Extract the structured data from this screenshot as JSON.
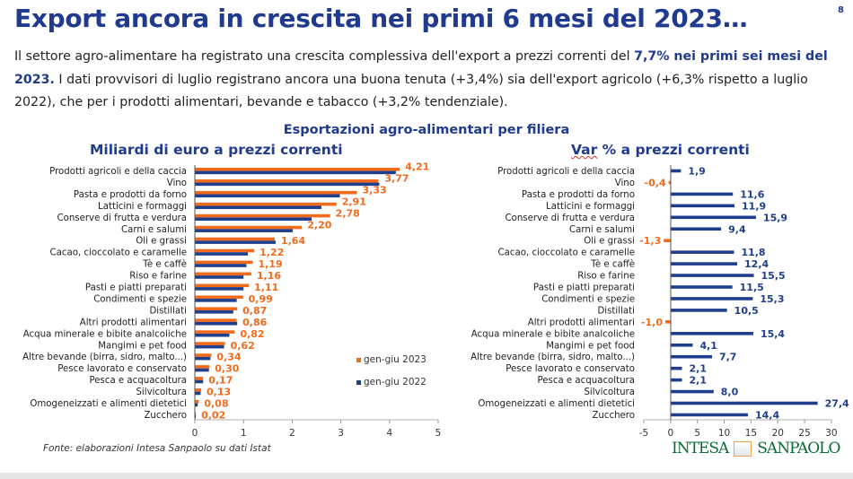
{
  "header": {
    "title": "Export ancora in crescita nei primi 6 mesi del 2023…",
    "page_number": "8",
    "intro_parts": [
      "Il settore agro-alimentare ha registrato una crescita complessiva dell'export a prezzi correnti del ",
      "7,7% nei primi sei mesi del 2023.",
      " I dati provvisori di luglio registrano ancora una buona tenuta (+3,4%) sia dell'export agricolo (+6,3% rispetto a luglio 2022), che per i prodotti alimentari, bevande e tabacco (+3,2% tendenziale)."
    ]
  },
  "charts_title": "Esportazioni agro-alimentari per filiera",
  "source": "Fonte: elaborazioni Intesa Sanpaolo su dati Istat",
  "logo": {
    "left": "INTESA",
    "right": "SANPAOLO"
  },
  "colors": {
    "orange": "#f26a1b",
    "navy": "#1f3e8c",
    "title": "#1f3a8f"
  },
  "chart_data": [
    {
      "type": "bar",
      "orientation": "horizontal",
      "title": "Miliardi di euro a prezzi correnti",
      "categories": [
        "Prodotti agricoli e della caccia",
        "Vino",
        "Pasta e prodotti da forno",
        "Latticini e formaggi",
        "Conserve di frutta e verdura",
        "Carni e salumi",
        "Oli e grassi",
        "Cacao, cioccolato e caramelle",
        "Tè e caffè",
        "Riso e farine",
        "Pasti e piatti preparati",
        "Condimenti e spezie",
        "Distillati",
        "Altri prodotti alimentari",
        "Acqua minerale e bibite analcoliche",
        "Mangimi e pet food",
        "Altre bevande (birra, sidro, malto...)",
        "Pesce lavorato e conservato",
        "Pesca e acquacoltura",
        "Silvicoltura",
        "Omogeneizzati e alimenti dietetici",
        "Zucchero"
      ],
      "series": [
        {
          "name": "gen-giu 2023",
          "color": "#f26a1b",
          "values": [
            4.21,
            3.77,
            3.33,
            2.91,
            2.78,
            2.2,
            1.64,
            1.22,
            1.19,
            1.16,
            1.11,
            0.99,
            0.87,
            0.86,
            0.82,
            0.62,
            0.34,
            0.3,
            0.17,
            0.13,
            0.08,
            0.02
          ],
          "labels": [
            "4,21",
            "3,77",
            "3,33",
            "2,91",
            "2,78",
            "2,20",
            "1,64",
            "1,22",
            "1,19",
            "1,16",
            "1,11",
            "0,99",
            "0,87",
            "0,86",
            "0,82",
            "0,62",
            "0,34",
            "0,30",
            "0,17",
            "0,13",
            "0,08",
            "0,02"
          ]
        },
        {
          "name": "gen-giu 2022",
          "color": "#1f3e8c",
          "values": [
            4.13,
            3.79,
            2.98,
            2.6,
            2.4,
            2.01,
            1.66,
            1.09,
            1.06,
            1.0,
            1.0,
            0.86,
            0.79,
            0.87,
            0.71,
            0.6,
            0.32,
            0.29,
            0.17,
            0.12,
            0.06,
            0.02
          ]
        }
      ],
      "xlim": [
        0,
        5
      ],
      "xticks": [
        "0",
        "1",
        "2",
        "3",
        "4",
        "5"
      ],
      "legend": "bottom-right"
    },
    {
      "type": "bar",
      "orientation": "horizontal",
      "title": "Var % a prezzi correnti",
      "categories": [
        "Prodotti agricoli e della caccia",
        "Vino",
        "Pasta e prodotti da forno",
        "Latticini e formaggi",
        "Conserve di frutta e verdura",
        "Carni e salumi",
        "Oli e grassi",
        "Cacao, cioccolato e caramelle",
        "Tè e caffè",
        "Riso e farine",
        "Pasti e piatti preparati",
        "Condimenti e spezie",
        "Distillati",
        "Altri prodotti alimentari",
        "Acqua minerale e bibite analcoliche",
        "Mangimi e pet food",
        "Altre bevande (birra, sidro, malto...)",
        "Pesce lavorato e conservato",
        "Pesca e acquacoltura",
        "Silvicoltura",
        "Omogeneizzati e alimenti dietetici",
        "Zucchero"
      ],
      "values": [
        1.9,
        -0.4,
        11.6,
        11.9,
        15.9,
        9.4,
        -1.3,
        11.8,
        12.4,
        15.5,
        11.5,
        15.3,
        10.5,
        -1.0,
        15.4,
        4.1,
        7.7,
        2.1,
        2.1,
        8.0,
        27.4,
        14.4
      ],
      "labels": [
        "1,9",
        "-0,4",
        "11,6",
        "11,9",
        "15,9",
        "9,4",
        "-1,3",
        "11,8",
        "12,4",
        "15,5",
        "11,5",
        "15,3",
        "10,5",
        "-1,0",
        "15,4",
        "4,1",
        "7,7",
        "2,1",
        "2,1",
        "8,0",
        "27,4",
        "14,4"
      ],
      "positive_color": "#1f3e8c",
      "negative_color": "#f26a1b",
      "xlim": [
        -5,
        30
      ],
      "xticks": [
        "-5",
        "0",
        "5",
        "10",
        "15",
        "20",
        "25",
        "30"
      ]
    }
  ]
}
